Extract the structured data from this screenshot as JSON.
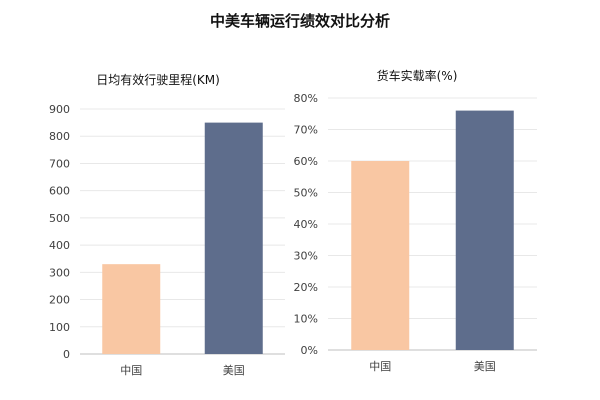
{
  "title": "中美车辆运行绩效对比分析",
  "chart_data": [
    {
      "type": "bar",
      "title": "日均有效行驶里程(KM)",
      "categories": [
        "中国",
        "美国"
      ],
      "values": [
        330,
        850
      ],
      "ylim": [
        0,
        900
      ],
      "yticks": [
        "0",
        "100",
        "200",
        "300",
        "400",
        "500",
        "600",
        "700",
        "800",
        "900"
      ],
      "tick_values": [
        0,
        100,
        200,
        300,
        400,
        500,
        600,
        700,
        800,
        900
      ],
      "grid": true,
      "colors": [
        "#f9c7a3",
        "#5e6d8c"
      ]
    },
    {
      "type": "bar",
      "title": "货车实载率(%)",
      "categories": [
        "中国",
        "美国"
      ],
      "values": [
        60,
        76
      ],
      "ylim": [
        0,
        80
      ],
      "yticks": [
        "0%",
        "10%",
        "20%",
        "30%",
        "40%",
        "50%",
        "60%",
        "70%",
        "80%"
      ],
      "tick_values": [
        0,
        10,
        20,
        30,
        40,
        50,
        60,
        70,
        80
      ],
      "grid": true,
      "colors": [
        "#f9c7a3",
        "#5e6d8c"
      ]
    }
  ]
}
